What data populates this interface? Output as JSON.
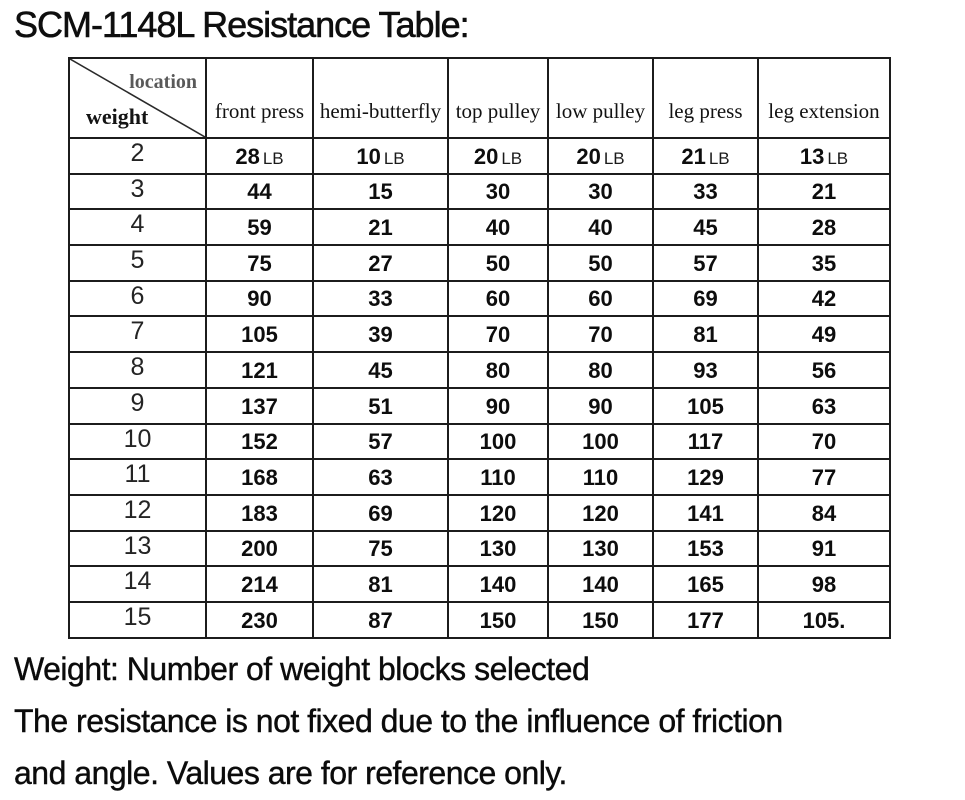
{
  "title": "SCM-1148L Resistance Table:",
  "table": {
    "corner": {
      "top_label": "location",
      "bottom_label": "weight"
    },
    "columns": [
      "front press",
      "hemi-butterfly",
      "top pulley",
      "low pulley",
      "leg press",
      "leg extension"
    ],
    "unit": "LB",
    "rows": [
      {
        "weight": "2",
        "show_unit": true,
        "values": [
          "28",
          "10",
          "20",
          "20",
          "21",
          "13"
        ]
      },
      {
        "weight": "3",
        "show_unit": false,
        "values": [
          "44",
          "15",
          "30",
          "30",
          "33",
          "21"
        ]
      },
      {
        "weight": "4",
        "show_unit": false,
        "values": [
          "59",
          "21",
          "40",
          "40",
          "45",
          "28"
        ]
      },
      {
        "weight": "5",
        "show_unit": false,
        "values": [
          "75",
          "27",
          "50",
          "50",
          "57",
          "35"
        ]
      },
      {
        "weight": "6",
        "show_unit": false,
        "values": [
          "90",
          "33",
          "60",
          "60",
          "69",
          "42"
        ]
      },
      {
        "weight": "7",
        "show_unit": false,
        "values": [
          "105",
          "39",
          "70",
          "70",
          "81",
          "49"
        ]
      },
      {
        "weight": "8",
        "show_unit": false,
        "values": [
          "121",
          "45",
          "80",
          "80",
          "93",
          "56"
        ]
      },
      {
        "weight": "9",
        "show_unit": false,
        "values": [
          "137",
          "51",
          "90",
          "90",
          "105",
          "63"
        ]
      },
      {
        "weight": "10",
        "show_unit": false,
        "values": [
          "152",
          "57",
          "100",
          "100",
          "117",
          "70"
        ]
      },
      {
        "weight": "11",
        "show_unit": false,
        "values": [
          "168",
          "63",
          "110",
          "110",
          "129",
          "77"
        ]
      },
      {
        "weight": "12",
        "show_unit": false,
        "values": [
          "183",
          "69",
          "120",
          "120",
          "141",
          "84"
        ]
      },
      {
        "weight": "13",
        "show_unit": false,
        "values": [
          "200",
          "75",
          "130",
          "130",
          "153",
          "91"
        ]
      },
      {
        "weight": "14",
        "show_unit": false,
        "values": [
          "214",
          "81",
          "140",
          "140",
          "165",
          "98"
        ]
      },
      {
        "weight": "15",
        "show_unit": false,
        "values": [
          "230",
          "87",
          "150",
          "150",
          "177",
          "105."
        ]
      }
    ]
  },
  "notes": [
    "Weight: Number of weight blocks selected",
    "The resistance is not fixed due to the influence of friction",
    "and angle. Values are for reference only."
  ],
  "colors": {
    "background": "#ffffff",
    "text": "#111111",
    "corner_label_muted": "#595959",
    "border": "#1c1c1c"
  }
}
